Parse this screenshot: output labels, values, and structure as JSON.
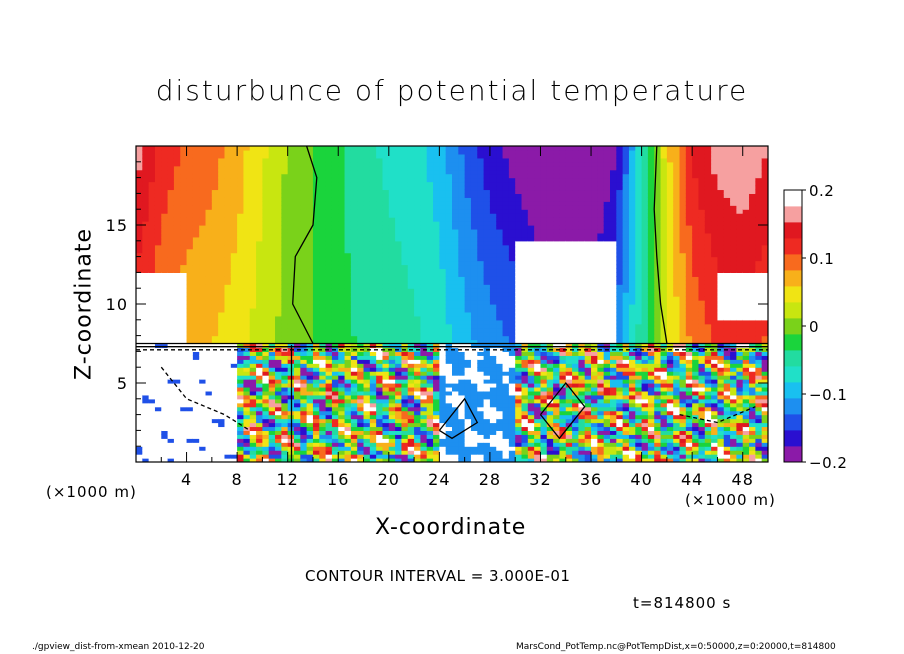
{
  "chart_data": {
    "type": "heatmap",
    "title": "disturbunce of potential temperature",
    "xlabel": "X-coordinate",
    "ylabel": "Z-coordinate",
    "x_unit_label": "(×1000 m)",
    "xlim": [
      0,
      50
    ],
    "ylim": [
      0,
      20
    ],
    "x_ticks": [
      4,
      8,
      12,
      16,
      20,
      24,
      28,
      32,
      36,
      40,
      44,
      48
    ],
    "y_ticks": [
      5,
      10,
      15
    ],
    "colorbar": {
      "range": [
        -0.2,
        0.2
      ],
      "ticks": [
        0.2,
        0.1,
        0,
        -0.1,
        -0.2
      ],
      "tick_labels": [
        "0.2",
        "0.1",
        "0",
        "−0.1",
        "−0.2"
      ],
      "colors": [
        "#8b1aa8",
        "#2a0fd0",
        "#1f50e8",
        "#1d8ff0",
        "#19c0f0",
        "#20e0c8",
        "#22dca0",
        "#1ad43c",
        "#7ad21a",
        "#c8e610",
        "#f0e414",
        "#f8b01a",
        "#f86a1e",
        "#ee2a22",
        "#e01820",
        "#f6a0a0"
      ]
    },
    "contour_interval": "CONTOUR INTERVAL = 3.000E-01",
    "time": "t=814800 s",
    "upper_layer_columns": {
      "x": [
        0,
        2,
        4,
        6,
        8,
        10,
        12,
        14,
        16,
        18,
        20,
        22,
        24,
        26,
        28,
        30,
        32,
        34,
        36,
        38,
        40,
        42,
        44,
        46,
        48,
        50
      ],
      "values": [
        0.17,
        0.13,
        0.11,
        0.1,
        0.08,
        0.05,
        0.02,
        0.0,
        -0.02,
        -0.04,
        -0.05,
        -0.06,
        -0.08,
        -0.12,
        -0.15,
        -0.17,
        -0.19,
        -0.2,
        -0.2,
        -0.16,
        -0.05,
        0.06,
        0.14,
        0.17,
        0.18,
        0.16
      ]
    }
  },
  "footer": {
    "left": "./gpview_dist-from-xmean  2010-12-20",
    "right": "MarsCond_PotTemp.nc@PotTempDist,x=0:50000,z=0:20000,t=814800"
  }
}
